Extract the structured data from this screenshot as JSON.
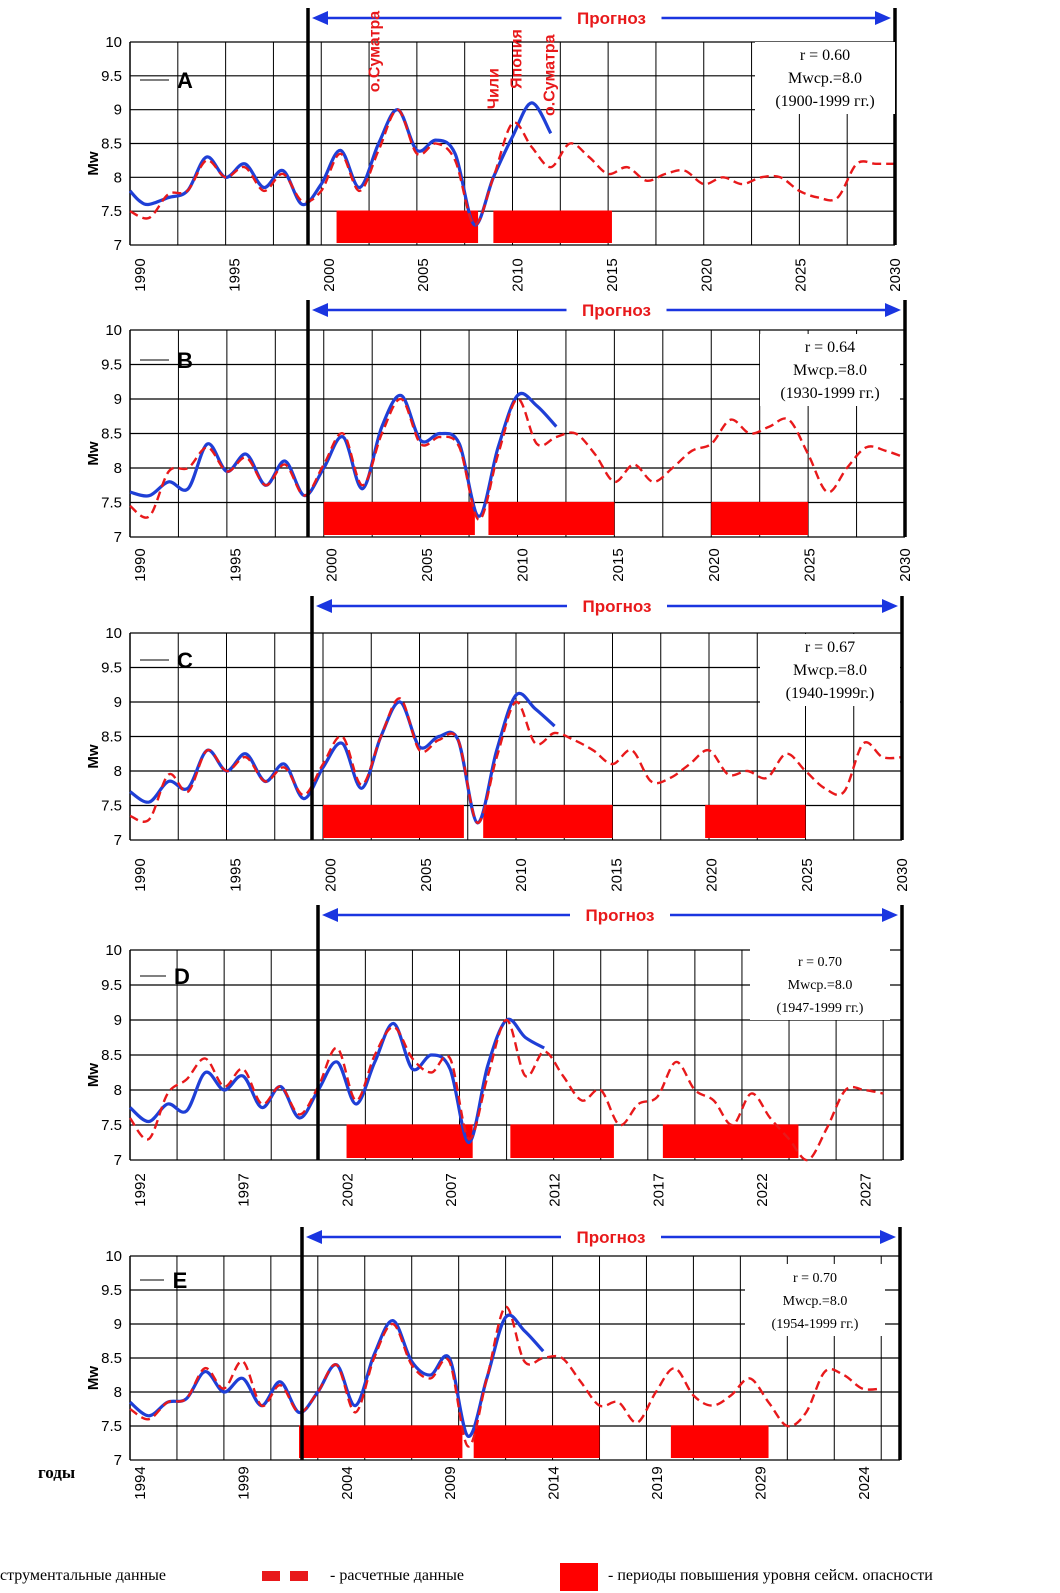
{
  "figure": {
    "forecast_label": "Прогноз",
    "y_axis_label": "Mw",
    "x_axis_label": "годы",
    "legend": {
      "instrumental": "- инструментальные данные",
      "calculated": "- расчетные данные",
      "periods": "- периоды повышения уровня сейсм. опасности"
    },
    "colors": {
      "instrumental": "#1f3fd6",
      "calculated": "#e8191b",
      "period_fill": "#ff0000",
      "forecast_arrow": "#1a35e0",
      "forecast_text": "#e8191b",
      "grid": "#000000"
    }
  },
  "chart_data": [
    {
      "type": "line",
      "panel": "A",
      "ylim": [
        7,
        10
      ],
      "yticks": [
        "7",
        "7.5",
        "8",
        "8.5",
        "9",
        "9.5",
        "10"
      ],
      "xticks": [
        "1990",
        "1995",
        "2000",
        "2005",
        "2010",
        "2015",
        "2020",
        "2025",
        "2030"
      ],
      "xlim": [
        1990,
        2030
      ],
      "forecast_start": 1999,
      "stats": [
        "r = 0.60",
        "Mwср.=8.0",
        "(1900-1999 гг.)"
      ],
      "annotations": [
        {
          "text": "о.Суматра",
          "x": 2004,
          "y": 9.05
        },
        {
          "text": "Чили",
          "x": 2010,
          "y": 8.8
        },
        {
          "text": "Япония",
          "x": 2011,
          "y": 9.1
        },
        {
          "text": "о.Суматра",
          "x": 2012.5,
          "y": 8.7
        }
      ],
      "periods": [
        [
          2000.8,
          2008.2
        ],
        [
          2009,
          2015.2
        ]
      ],
      "series": [
        {
          "kind": "instrumental",
          "x": [
            1990,
            1990.5,
            1991,
            1992,
            1993,
            1994,
            1995,
            1996,
            1997,
            1998,
            1999,
            2000,
            2001,
            2002,
            2003,
            2004,
            2005,
            2006,
            2007,
            2008,
            2009,
            2010,
            2011,
            2012
          ],
          "values": [
            7.8,
            7.65,
            7.6,
            7.7,
            7.8,
            8.3,
            8.0,
            8.2,
            7.85,
            8.1,
            7.6,
            7.9,
            8.4,
            7.85,
            8.5,
            9.0,
            8.4,
            8.55,
            8.35,
            7.3,
            8.0,
            8.6,
            9.1,
            8.65
          ]
        },
        {
          "kind": "calculated",
          "x": [
            1990,
            1991,
            1992,
            1993,
            1994,
            1995,
            1996,
            1997,
            1998,
            1999,
            2000,
            2001,
            2002,
            2003,
            2004,
            2005,
            2006,
            2007,
            2008,
            2009,
            2010,
            2011,
            2012,
            2013,
            2014,
            2015,
            2016,
            2017,
            2018,
            2019,
            2020,
            2021,
            2022,
            2023,
            2024,
            2025,
            2026,
            2027,
            2028,
            2029,
            2030
          ],
          "values": [
            7.5,
            7.4,
            7.75,
            7.8,
            8.25,
            8.0,
            8.15,
            7.8,
            8.05,
            7.65,
            7.8,
            8.35,
            7.8,
            8.4,
            9.0,
            8.35,
            8.5,
            8.25,
            7.3,
            8.0,
            8.8,
            8.45,
            8.15,
            8.5,
            8.3,
            8.05,
            8.15,
            7.95,
            8.05,
            8.1,
            7.9,
            8.0,
            7.9,
            8.0,
            8.0,
            7.8,
            7.7,
            7.7,
            8.2,
            8.2,
            8.2
          ]
        }
      ]
    },
    {
      "type": "line",
      "panel": "B",
      "ylim": [
        7,
        10
      ],
      "yticks": [
        "7",
        "7.5",
        "8",
        "8.5",
        "9",
        "9.5",
        "10"
      ],
      "xticks": [
        "1990",
        "1995",
        "2000",
        "2005",
        "2010",
        "2015",
        "2020",
        "2025",
        "2030"
      ],
      "xlim": [
        1990,
        2030
      ],
      "forecast_start": 1999,
      "stats": [
        "r = 0.64",
        "Mwср.=8.0",
        "(1930-1999 гг.)"
      ],
      "annotations": [],
      "periods": [
        [
          2000,
          2007.8
        ],
        [
          2008.5,
          2015
        ],
        [
          2020,
          2025
        ]
      ],
      "series": [
        {
          "kind": "instrumental",
          "x": [
            1990,
            1991,
            1992,
            1993,
            1994,
            1995,
            1996,
            1997,
            1998,
            1999,
            2000,
            2001,
            2002,
            2003,
            2004,
            2005,
            2006,
            2007,
            2008,
            2009,
            2010,
            2011,
            2012
          ],
          "values": [
            7.65,
            7.6,
            7.8,
            7.7,
            8.35,
            7.95,
            8.2,
            7.75,
            8.1,
            7.6,
            8.0,
            8.45,
            7.7,
            8.6,
            9.05,
            8.4,
            8.5,
            8.35,
            7.3,
            8.3,
            9.05,
            8.9,
            8.6
          ]
        },
        {
          "kind": "calculated",
          "x": [
            1990,
            1991,
            1992,
            1993,
            1994,
            1995,
            1996,
            1997,
            1998,
            1999,
            2000,
            2001,
            2002,
            2003,
            2004,
            2005,
            2006,
            2007,
            2008,
            2009,
            2010,
            2011,
            2012,
            2013,
            2014,
            2015,
            2016,
            2017,
            2018,
            2019,
            2020,
            2021,
            2022,
            2023,
            2024,
            2025,
            2026,
            2027,
            2028,
            2029,
            2030
          ],
          "values": [
            7.45,
            7.3,
            7.95,
            8.0,
            8.3,
            7.95,
            8.15,
            7.75,
            8.05,
            7.6,
            8.05,
            8.5,
            7.75,
            8.5,
            9.0,
            8.35,
            8.45,
            8.3,
            7.25,
            8.2,
            9.0,
            8.35,
            8.45,
            8.5,
            8.2,
            7.8,
            8.05,
            7.8,
            8.0,
            8.25,
            8.35,
            8.7,
            8.5,
            8.6,
            8.7,
            8.2,
            7.65,
            8.0,
            8.3,
            8.25,
            8.15
          ]
        }
      ]
    },
    {
      "type": "line",
      "panel": "C",
      "ylim": [
        7,
        10
      ],
      "yticks": [
        "7",
        "7.5",
        "8",
        "8.5",
        "9",
        "9.5",
        "10"
      ],
      "xticks": [
        "1990",
        "1995",
        "2000",
        "2005",
        "2010",
        "2015",
        "2020",
        "2025",
        "2030"
      ],
      "xlim": [
        1990,
        2030
      ],
      "forecast_start": 1999,
      "stats": [
        "r = 0.67",
        "Mwср.=8.0",
        "(1940-1999г.)"
      ],
      "annotations": [],
      "periods": [
        [
          2000,
          2007.3
        ],
        [
          2008.3,
          2015
        ],
        [
          2019.8,
          2025
        ]
      ],
      "series": [
        {
          "kind": "instrumental",
          "x": [
            1990,
            1991,
            1992,
            1993,
            1994,
            1995,
            1996,
            1997,
            1998,
            1999,
            2000,
            2001,
            2002,
            2003,
            2004,
            2005,
            2006,
            2007,
            2008,
            2009,
            2010,
            2011,
            2012
          ],
          "values": [
            7.7,
            7.55,
            7.85,
            7.75,
            8.3,
            8.0,
            8.25,
            7.85,
            8.1,
            7.6,
            8.05,
            8.4,
            7.75,
            8.5,
            9.0,
            8.35,
            8.5,
            8.45,
            7.25,
            8.3,
            9.1,
            8.9,
            8.65
          ]
        },
        {
          "kind": "calculated",
          "x": [
            1990,
            1991,
            1992,
            1993,
            1994,
            1995,
            1996,
            1997,
            1998,
            1999,
            2000,
            2001,
            2002,
            2003,
            2004,
            2005,
            2006,
            2007,
            2008,
            2009,
            2010,
            2011,
            2012,
            2013,
            2014,
            2015,
            2016,
            2017,
            2018,
            2019,
            2020,
            2021,
            2022,
            2023,
            2024,
            2025,
            2026,
            2027,
            2028,
            2029,
            2030
          ],
          "values": [
            7.35,
            7.3,
            7.95,
            7.7,
            8.3,
            8.0,
            8.2,
            7.85,
            8.05,
            7.65,
            8.1,
            8.5,
            7.8,
            8.5,
            9.05,
            8.3,
            8.45,
            8.45,
            7.25,
            8.2,
            9.0,
            8.4,
            8.55,
            8.45,
            8.3,
            8.1,
            8.3,
            7.85,
            7.9,
            8.1,
            8.3,
            7.95,
            8.0,
            7.9,
            8.25,
            8.0,
            7.75,
            7.7,
            8.4,
            8.2,
            8.2
          ]
        }
      ]
    },
    {
      "type": "line",
      "panel": "D",
      "ylim": [
        7,
        10
      ],
      "yticks": [
        "7",
        "7.5",
        "8",
        "8.5",
        "9",
        "9.5",
        "10"
      ],
      "xticks": [
        "1992",
        "1997",
        "2002",
        "2007",
        "2012",
        "2017",
        "2022",
        "2027"
      ],
      "xlim": [
        1990,
        2031
      ],
      "forecast_start": 1999,
      "stats": [
        "r = 0.70",
        "Mwср.=8.0",
        "(1947-1999 гг.)"
      ],
      "annotations": [],
      "periods": [
        [
          2001.5,
          2008.2
        ],
        [
          2010.2,
          2015.7
        ],
        [
          2018.3,
          2025.5
        ]
      ],
      "series": [
        {
          "kind": "instrumental",
          "x": [
            1990,
            1991,
            1992,
            1993,
            1994,
            1995,
            1996,
            1997,
            1998,
            1999,
            2000,
            2001,
            2002,
            2003,
            2004,
            2005,
            2006,
            2007,
            2008,
            2009,
            2010,
            2011,
            2012
          ],
          "values": [
            7.75,
            7.55,
            7.8,
            7.7,
            8.25,
            8.0,
            8.2,
            7.75,
            8.05,
            7.6,
            8.0,
            8.4,
            7.8,
            8.4,
            8.95,
            8.3,
            8.5,
            8.3,
            7.25,
            8.35,
            9.0,
            8.75,
            8.6
          ]
        },
        {
          "kind": "calculated",
          "x": [
            1990,
            1991,
            1992,
            1993,
            1994,
            1995,
            1996,
            1997,
            1998,
            1999,
            2000,
            2001,
            2002,
            2003,
            2004,
            2005,
            2006,
            2007,
            2008,
            2009,
            2010,
            2011,
            2012,
            2013,
            2014,
            2015,
            2016,
            2017,
            2018,
            2019,
            2020,
            2021,
            2022,
            2023,
            2024,
            2025,
            2026,
            2027,
            2028,
            2029,
            2030
          ],
          "values": [
            7.6,
            7.3,
            7.95,
            8.15,
            8.45,
            8.05,
            8.3,
            7.8,
            8.05,
            7.65,
            8.05,
            8.6,
            7.85,
            8.5,
            8.9,
            8.45,
            8.25,
            8.45,
            7.3,
            8.2,
            9.0,
            8.2,
            8.55,
            8.2,
            7.85,
            8.0,
            7.5,
            7.8,
            7.9,
            8.4,
            8.0,
            7.85,
            7.5,
            7.95,
            7.6,
            7.3,
            7.0,
            7.45,
            8.0,
            8.0,
            7.95
          ]
        }
      ]
    },
    {
      "type": "line",
      "panel": "E",
      "ylim": [
        7,
        10
      ],
      "yticks": [
        "7",
        "7.5",
        "8",
        "8.5",
        "9",
        "9.5",
        "10"
      ],
      "xticks": [
        "1994",
        "1999",
        "2004",
        "2009",
        "2014",
        "2019",
        "2029",
        "2024"
      ],
      "xlim": [
        1990,
        2031
      ],
      "forecast_start": 1999,
      "stats": [
        "r = 0.70",
        "Mwср.=8.0",
        "(1954-1999 гг.)"
      ],
      "annotations": [],
      "periods": [
        [
          1999,
          2007.7
        ],
        [
          2008.3,
          2015
        ],
        [
          2018.8,
          2024
        ]
      ],
      "series": [
        {
          "kind": "instrumental",
          "x": [
            1990,
            1991,
            1992,
            1993,
            1994,
            1995,
            1996,
            1997,
            1998,
            1999,
            2000,
            2001,
            2002,
            2003,
            2004,
            2005,
            2006,
            2007,
            2008,
            2009,
            2010,
            2011,
            2012
          ],
          "values": [
            7.85,
            7.65,
            7.85,
            7.9,
            8.3,
            8.0,
            8.2,
            7.8,
            8.15,
            7.7,
            8.0,
            8.4,
            7.8,
            8.55,
            9.05,
            8.45,
            8.25,
            8.5,
            7.35,
            8.2,
            9.1,
            8.9,
            8.6
          ]
        },
        {
          "kind": "calculated",
          "x": [
            1990,
            1991,
            1992,
            1993,
            1994,
            1995,
            1996,
            1997,
            1998,
            1999,
            2000,
            2001,
            2002,
            2003,
            2004,
            2005,
            2006,
            2007,
            2008,
            2009,
            2010,
            2011,
            2012,
            2013,
            2014,
            2015,
            2016,
            2017,
            2018,
            2019,
            2020,
            2021,
            2022,
            2023,
            2024,
            2025,
            2026,
            2027,
            2028,
            2029,
            2030
          ],
          "values": [
            7.75,
            7.6,
            7.85,
            7.9,
            8.35,
            8.05,
            8.45,
            7.8,
            8.1,
            7.7,
            8.0,
            8.4,
            7.7,
            8.5,
            9.0,
            8.4,
            8.2,
            8.45,
            7.2,
            8.2,
            9.25,
            8.45,
            8.5,
            8.5,
            8.15,
            7.8,
            7.85,
            7.55,
            8.0,
            8.35,
            7.95,
            7.8,
            7.95,
            8.2,
            7.85,
            7.5,
            7.7,
            8.3,
            8.25,
            8.05,
            8.05
          ]
        }
      ]
    }
  ]
}
